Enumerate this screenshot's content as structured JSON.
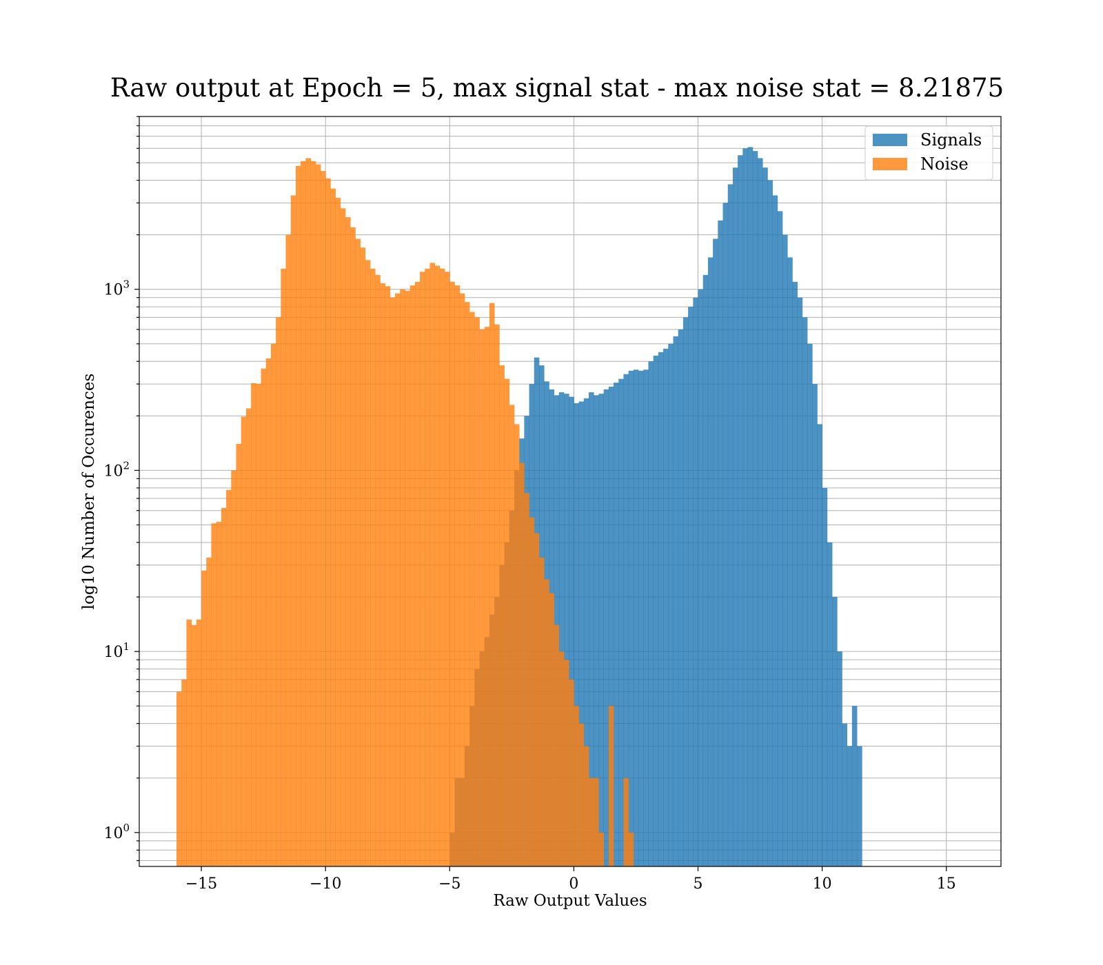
{
  "chart_data": {
    "type": "bar",
    "title": "Raw output at Epoch = 5, max signal stat - max noise stat = 8.21875",
    "xlabel": "Raw Output Values",
    "ylabel": "log10 Number of Occurences",
    "yscale": "log",
    "xlim": [
      -17.5,
      17.2
    ],
    "ylim": [
      0.65,
      9000
    ],
    "grid": true,
    "legend_position": "top-right",
    "bin_width": 0.2,
    "x_ticks": [
      -15,
      -10,
      -5,
      0,
      5,
      10,
      15
    ],
    "x_tick_labels": [
      "−15",
      "−10",
      "−5",
      "0",
      "5",
      "10",
      "15"
    ],
    "y_ticks": [
      1,
      10,
      100,
      1000
    ],
    "y_tick_labels": [
      {
        "base": "10",
        "exp": "0"
      },
      {
        "base": "10",
        "exp": "1"
      },
      {
        "base": "10",
        "exp": "2"
      },
      {
        "base": "10",
        "exp": "3"
      }
    ],
    "series": [
      {
        "name": "Signals",
        "color": "#1f77b4",
        "opacity": 0.8,
        "x_start": -5.0,
        "counts": [
          1,
          2,
          2,
          3,
          5,
          8,
          10,
          12,
          16,
          20,
          30,
          40,
          60,
          100,
          150,
          200,
          300,
          420,
          380,
          310,
          280,
          260,
          270,
          265,
          255,
          235,
          240,
          250,
          270,
          260,
          265,
          280,
          290,
          305,
          320,
          340,
          355,
          360,
          355,
          360,
          400,
          430,
          450,
          470,
          500,
          550,
          600,
          700,
          800,
          900,
          1000,
          1200,
          1500,
          1900,
          2400,
          3000,
          3800,
          4700,
          5500,
          6000,
          6100,
          5800,
          5300,
          4700,
          4000,
          3300,
          2700,
          2000,
          1500,
          1100,
          900,
          700,
          500,
          300,
          180,
          80,
          40,
          20,
          10,
          4,
          3,
          5,
          3
        ]
      },
      {
        "name": "Noise",
        "color": "#ff7f0e",
        "opacity": 0.8,
        "x_start": -16.0,
        "counts": [
          6,
          7,
          15,
          14,
          15,
          28,
          33,
          51,
          52,
          62,
          78,
          100,
          140,
          198,
          220,
          303,
          300,
          365,
          415,
          500,
          700,
          1300,
          2000,
          3300,
          4800,
          5100,
          5300,
          5100,
          4900,
          4500,
          4100,
          3600,
          3200,
          2800,
          2500,
          2200,
          1900,
          1700,
          1450,
          1300,
          1200,
          1080,
          1040,
          900,
          950,
          1000,
          980,
          1050,
          1100,
          1250,
          1300,
          1400,
          1350,
          1300,
          1250,
          1100,
          1050,
          950,
          850,
          750,
          700,
          600,
          620,
          840,
          640,
          380,
          320,
          230,
          180,
          110,
          75,
          55,
          45,
          33,
          25,
          21,
          14,
          10,
          9,
          7,
          5,
          4,
          3,
          2,
          2,
          1,
          0,
          5,
          0,
          0,
          2,
          1
        ]
      }
    ]
  }
}
